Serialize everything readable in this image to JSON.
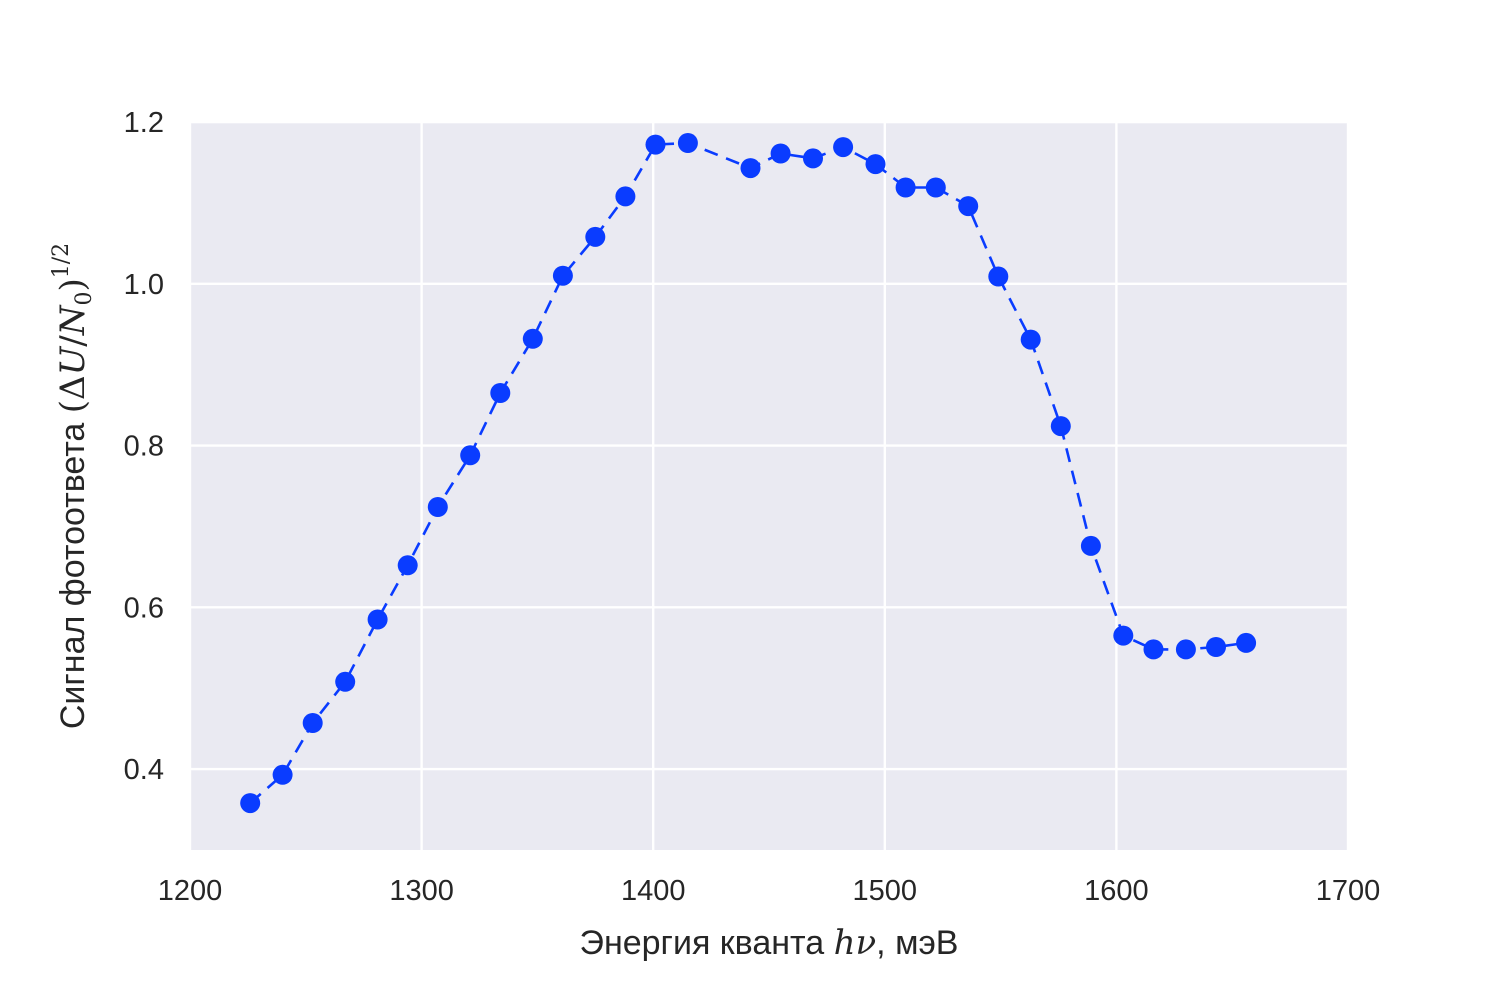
{
  "chart_data": {
    "type": "line",
    "title": "",
    "xlabel": "Энергия кванта hν, мэВ",
    "ylabel": "Сигнал фотоответа (ΔU/N0)^(1/2)",
    "xlim": [
      1200,
      1700
    ],
    "ylim": [
      0.3,
      1.2
    ],
    "xticks": [
      "1200",
      "1300",
      "1400",
      "1500",
      "1600",
      "1700"
    ],
    "yticks": [
      "0.4",
      "0.6",
      "0.8",
      "1.0",
      "1.2"
    ],
    "grid": true,
    "line_style": "dashed",
    "marker": "circle",
    "color": "#0a3cff",
    "background": "#eaeaf2",
    "series": [
      {
        "x": [
          1226,
          1240,
          1253,
          1267,
          1281,
          1294,
          1307,
          1321,
          1334,
          1348,
          1361,
          1375,
          1388,
          1401,
          1415,
          1442,
          1455,
          1469,
          1482,
          1496,
          1509,
          1522,
          1536,
          1549,
          1563,
          1576,
          1589,
          1603,
          1616,
          1630,
          1643,
          1656
        ],
        "y": [
          0.358,
          0.393,
          0.457,
          0.508,
          0.585,
          0.652,
          0.724,
          0.788,
          0.865,
          0.932,
          1.01,
          1.058,
          1.108,
          1.172,
          1.174,
          1.143,
          1.161,
          1.155,
          1.169,
          1.148,
          1.119,
          1.119,
          1.096,
          1.009,
          0.931,
          0.824,
          0.676,
          0.565,
          0.548,
          0.548,
          0.551,
          0.556
        ]
      }
    ],
    "ylabel_parts": {
      "text": "Сигнал фотоответа ",
      "delta": "Δ",
      "u": "U",
      "slash": "/",
      "n": "N",
      "sub": "0",
      "open": "(",
      "close": ")",
      "sup": "1/2"
    },
    "xlabel_parts": {
      "text": "Энергия кванта ",
      "h": "h",
      "nu": "ν",
      "unit": ", мэВ"
    }
  }
}
